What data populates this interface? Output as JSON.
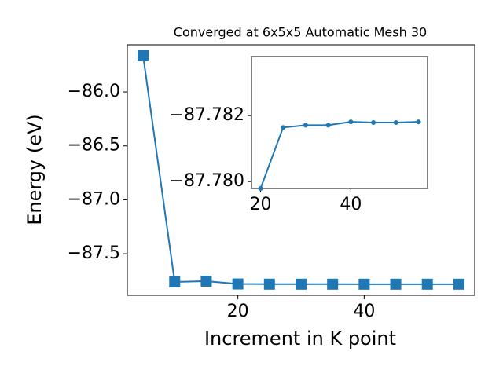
{
  "chart_data": [
    {
      "type": "line",
      "title": "Converged at 6x5x5 Automatic Mesh 30",
      "xlabel": "Increment in K point",
      "ylabel": "Energy (eV)",
      "x": [
        5,
        10,
        15,
        20,
        25,
        30,
        35,
        40,
        45,
        50,
        55
      ],
      "values": [
        -85.665,
        -87.761,
        -87.754,
        -87.7798,
        -87.7816,
        -87.7817,
        -87.7817,
        -87.7818,
        -87.7818,
        -87.7818,
        -87.7818
      ],
      "color": "#1f77b4",
      "marker": "square",
      "xlim": [
        2.5,
        57.5
      ],
      "ylim": [
        -87.885,
        -85.563
      ],
      "xticks": [
        20,
        40
      ],
      "yticks": [
        {
          "value": -86.0,
          "label": "−86.0"
        },
        {
          "value": -86.5,
          "label": "−86.5"
        },
        {
          "value": -87.0,
          "label": "−87.0"
        },
        {
          "value": -87.5,
          "label": "−87.5"
        }
      ]
    },
    {
      "type": "line",
      "x": [
        20,
        25,
        30,
        35,
        40,
        45,
        50,
        55
      ],
      "values": [
        -87.77979,
        -87.78164,
        -87.78171,
        -87.78171,
        -87.78181,
        -87.78179,
        -87.78179,
        -87.78181
      ],
      "color": "#1f77b4",
      "marker": "circle",
      "xlim": [
        18,
        57
      ],
      "ylim": [
        -87.77979,
        -87.78379
      ],
      "xticks": [
        20,
        40
      ],
      "yticks": [
        {
          "value": -87.78,
          "label": "−87.780"
        },
        {
          "value": -87.782,
          "label": "−87.782"
        }
      ]
    }
  ]
}
